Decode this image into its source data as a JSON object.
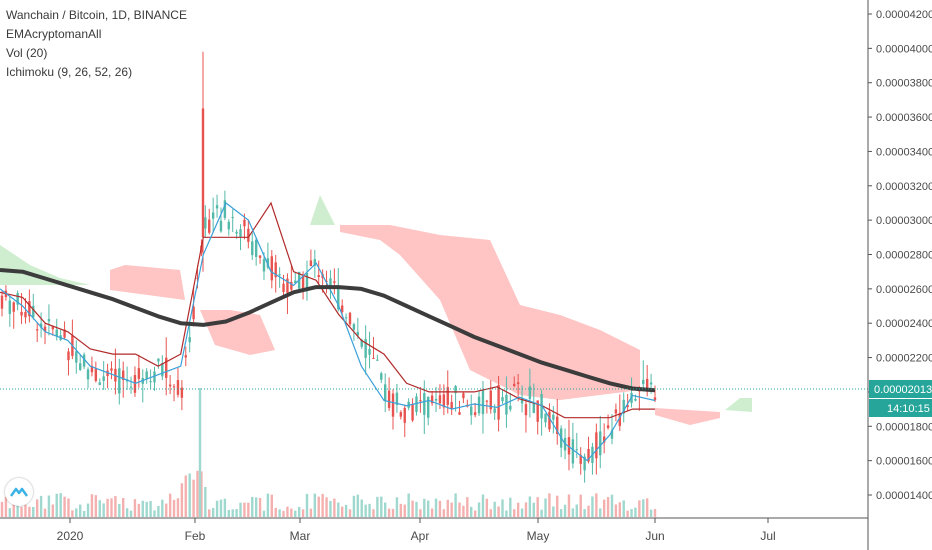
{
  "legend": {
    "symbol": "Wanchain / Bitcoin, 1D, BINANCE",
    "ema": "EMAcryptomanAll",
    "vol": "Vol (20)",
    "ichimoku": "Ichimoku (9, 26, 52, 26)"
  },
  "chart_data": {
    "type": "candlestick",
    "symbol": "Wanchain / Bitcoin",
    "interval": "1D",
    "exchange": "BINANCE",
    "yticks": [
      "0.00004200",
      "0.00004000",
      "0.00003800",
      "0.00003600",
      "0.00003400",
      "0.00003200",
      "0.00003000",
      "0.00002800",
      "0.00002600",
      "0.00002400",
      "0.00002200",
      "0.00002000",
      "0.00001800",
      "0.00001600",
      "0.00001400"
    ],
    "ylim": [
      1.32e-05,
      4.22e-05
    ],
    "xticks": [
      "2020",
      "Feb",
      "Mar",
      "Apr",
      "May",
      "Jun",
      "Jul"
    ],
    "last_price": "0.00002013",
    "countdown": "14:10:15",
    "colors": {
      "up": "#53b9a9",
      "down": "#e8534f",
      "ema": "#3c3c3c",
      "tenkan": "#3aa0d8",
      "kijun": "#b22a2a",
      "cloud_bull": "#a8dfa8",
      "cloud_bear": "#ffc4c4",
      "axis": "#555555",
      "price_line": "#26a69a"
    },
    "ema_values": [
      2.71e-05,
      2.7e-05,
      2.66e-05,
      2.62e-05,
      2.58e-05,
      2.54e-05,
      2.49e-05,
      2.44e-05,
      2.4e-05,
      2.39e-05,
      2.41e-05,
      2.46e-05,
      2.52e-05,
      2.58e-05,
      2.61e-05,
      2.61e-05,
      2.6e-05,
      2.56e-05,
      2.5e-05,
      2.44e-05,
      2.38e-05,
      2.32e-05,
      2.27e-05,
      2.22e-05,
      2.17e-05,
      2.13e-05,
      2.09e-05,
      2.05e-05,
      2.02e-05,
      2.01e-05
    ],
    "tenkan_values": [
      2.6e-05,
      2.5e-05,
      2.35e-05,
      2.3e-05,
      2.15e-05,
      2.1e-05,
      2.05e-05,
      2.1e-05,
      2.15e-05,
      2.8e-05,
      3.1e-05,
      3e-05,
      2.7e-05,
      2.62e-05,
      2.75e-05,
      2.5e-05,
      2.15e-05,
      1.95e-05,
      1.92e-05,
      1.95e-05,
      1.9e-05,
      1.93e-05,
      1.91e-05,
      1.97e-05,
      1.92e-05,
      1.7e-05,
      1.6e-05,
      1.75e-05,
      1.98e-05,
      1.95e-05
    ],
    "kijun_values": [
      2.58e-05,
      2.55e-05,
      2.4e-05,
      2.35e-05,
      2.25e-05,
      2.22e-05,
      2.22e-05,
      2.15e-05,
      2.22e-05,
      2.9e-05,
      2.9e-05,
      2.9e-05,
      3.1e-05,
      2.7e-05,
      2.65e-05,
      2.45e-05,
      2.3e-05,
      2.22e-05,
      2.05e-05,
      2e-05,
      2e-05,
      2e-05,
      2.03e-05,
      1.96e-05,
      1.92e-05,
      1.85e-05,
      1.85e-05,
      1.85e-05,
      1.9e-05,
      1.9e-05
    ]
  }
}
